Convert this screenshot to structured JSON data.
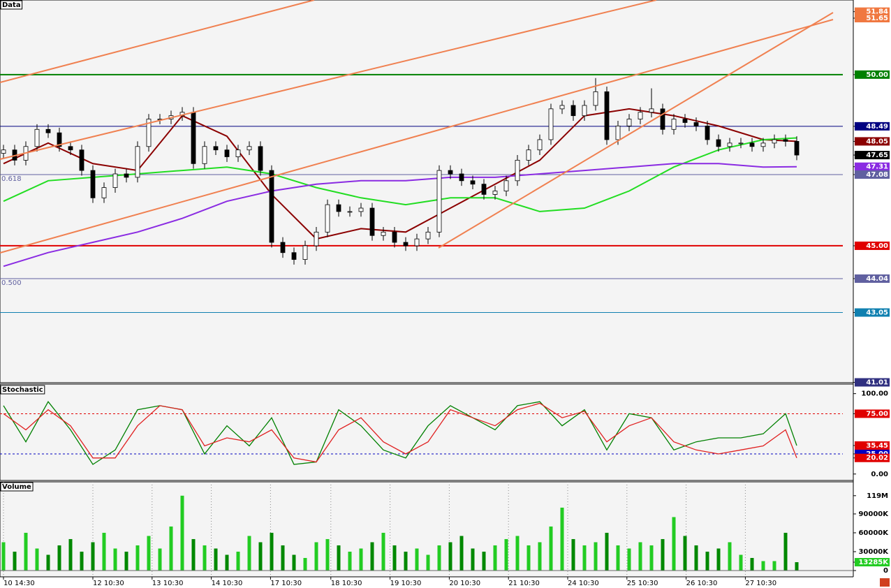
{
  "chart_data": [
    {
      "type": "candlestick",
      "title": "Data",
      "open": [
        47.7,
        47.8,
        47.5,
        47.9,
        48.4,
        48.3,
        47.9,
        47.8,
        47.2,
        46.4,
        46.7,
        47.1,
        47.0,
        47.9,
        48.7,
        48.7,
        48.8,
        48.9,
        47.4,
        47.9,
        47.8,
        47.6,
        47.8,
        47.9,
        47.2,
        45.1,
        44.8,
        44.6,
        45.0,
        45.4,
        46.2,
        46.0,
        46.0,
        46.1,
        45.3,
        45.4,
        45.1,
        45.0,
        45.2,
        45.4,
        47.2,
        47.1,
        46.9,
        46.8,
        46.5,
        46.6,
        46.9,
        47.5,
        47.8,
        48.1,
        49.0,
        49.1,
        48.8,
        49.1,
        49.5,
        48.1,
        48.5,
        48.7,
        48.9,
        49.0,
        48.4,
        48.7,
        48.6,
        48.5,
        48.1,
        47.9,
        48.0,
        48.0,
        47.9,
        48.0,
        48.1,
        48.05
      ],
      "high": [
        47.95,
        47.95,
        48.05,
        48.55,
        48.55,
        48.45,
        48.05,
        47.95,
        47.35,
        46.85,
        47.25,
        47.25,
        48.05,
        48.85,
        48.85,
        48.95,
        49.05,
        49.05,
        48.05,
        48.05,
        47.95,
        47.95,
        48.05,
        48.05,
        47.35,
        45.25,
        44.95,
        45.15,
        45.55,
        46.35,
        46.35,
        46.15,
        46.25,
        46.25,
        45.55,
        45.55,
        45.25,
        45.35,
        45.55,
        47.35,
        47.35,
        47.25,
        47.05,
        46.95,
        46.75,
        47.05,
        47.65,
        47.95,
        48.25,
        49.15,
        49.25,
        49.25,
        49.25,
        49.9,
        49.65,
        48.65,
        48.85,
        49.05,
        49.6,
        49.15,
        48.85,
        48.85,
        48.75,
        48.65,
        48.25,
        48.15,
        48.15,
        48.15,
        48.15,
        48.25,
        48.25,
        48.2
      ],
      "low": [
        47.55,
        47.35,
        47.35,
        47.75,
        48.15,
        47.75,
        47.65,
        47.05,
        46.25,
        46.25,
        46.55,
        46.85,
        46.85,
        47.75,
        48.55,
        48.55,
        48.65,
        47.25,
        47.25,
        47.65,
        47.45,
        47.45,
        47.65,
        47.05,
        44.95,
        44.65,
        44.45,
        44.45,
        44.85,
        45.25,
        45.85,
        45.85,
        45.85,
        45.15,
        45.15,
        44.95,
        44.85,
        44.85,
        45.05,
        45.25,
        46.95,
        46.75,
        46.65,
        46.35,
        46.35,
        46.45,
        46.75,
        47.35,
        47.65,
        47.95,
        48.85,
        48.65,
        48.65,
        48.95,
        47.95,
        47.95,
        48.35,
        48.55,
        48.75,
        48.25,
        48.25,
        48.45,
        48.35,
        47.95,
        47.75,
        47.75,
        47.85,
        47.75,
        47.75,
        47.85,
        47.9,
        47.5
      ],
      "close": [
        47.8,
        47.5,
        47.9,
        48.4,
        48.3,
        47.9,
        47.8,
        47.2,
        46.4,
        46.7,
        47.1,
        47.0,
        47.9,
        48.7,
        48.7,
        48.8,
        48.9,
        47.4,
        47.9,
        47.8,
        47.6,
        47.8,
        47.9,
        47.2,
        45.1,
        44.8,
        44.6,
        45.0,
        45.4,
        46.2,
        46.0,
        46.0,
        46.1,
        45.3,
        45.4,
        45.1,
        45.0,
        45.2,
        45.4,
        47.2,
        47.1,
        46.9,
        46.8,
        46.5,
        46.6,
        46.9,
        47.5,
        47.8,
        48.1,
        49.0,
        49.1,
        48.8,
        49.1,
        49.5,
        48.1,
        48.5,
        48.7,
        48.9,
        49.0,
        48.4,
        48.7,
        48.6,
        48.5,
        48.1,
        47.9,
        48.0,
        48.0,
        47.9,
        48.0,
        48.1,
        48.05,
        47.65
      ],
      "series": [
        {
          "color": "#8b0000",
          "x": [
            0,
            4,
            8,
            12,
            16,
            20,
            24,
            28,
            32,
            36,
            40,
            44,
            48,
            52,
            56,
            60,
            64,
            68,
            71
          ],
          "values": [
            47.4,
            48.0,
            47.4,
            47.2,
            48.8,
            48.2,
            46.5,
            45.2,
            45.5,
            45.4,
            46.1,
            46.8,
            47.5,
            48.8,
            49.0,
            48.8,
            48.5,
            48.1,
            48.05
          ]
        },
        {
          "color": "#22dd22",
          "x": [
            0,
            4,
            8,
            12,
            16,
            20,
            24,
            28,
            32,
            36,
            40,
            44,
            48,
            52,
            56,
            60,
            64,
            68,
            71
          ],
          "values": [
            46.3,
            46.9,
            47.0,
            47.1,
            47.2,
            47.3,
            47.1,
            46.7,
            46.4,
            46.2,
            46.4,
            46.4,
            46.0,
            46.1,
            46.6,
            47.3,
            47.8,
            48.1,
            48.15
          ]
        },
        {
          "color": "#8a2be2",
          "x": [
            0,
            4,
            8,
            12,
            16,
            20,
            24,
            28,
            32,
            36,
            40,
            44,
            48,
            52,
            56,
            60,
            64,
            68,
            71
          ],
          "values": [
            44.4,
            44.8,
            45.1,
            45.4,
            45.8,
            46.3,
            46.6,
            46.8,
            46.9,
            46.9,
            47.0,
            47.0,
            47.1,
            47.2,
            47.3,
            47.4,
            47.4,
            47.3,
            47.31
          ]
        }
      ],
      "ylim": [
        41.0,
        52.18
      ],
      "yticks": [
        51.84,
        51.65,
        {
          "value": 50,
          "label": "50.00"
        },
        48.49,
        48.05,
        47.65,
        47.31,
        47.08,
        {
          "value": 45,
          "label": "45.00"
        },
        44.04,
        43.05,
        41.01
      ],
      "ytick_colors": [
        "#f07840",
        "#f07840",
        "#008000",
        "#000080",
        "#8b0000",
        "#000000",
        "#8a2be2",
        "#6060a0",
        "#e00000",
        "#6060a0",
        "#1080b0",
        "#303080"
      ],
      "ytick_lines": [
        null,
        null,
        "#008000",
        "#000080",
        null,
        null,
        null,
        "#6060a0",
        "#e00000",
        "#6060a0",
        "#1080b0",
        null
      ],
      "annotations": [
        "0.618",
        "0.500"
      ]
    },
    {
      "type": "line",
      "title": "Stochastic",
      "series": [
        {
          "color": "#008000",
          "x": [
            0,
            2,
            4,
            6,
            8,
            10,
            12,
            14,
            16,
            18,
            20,
            22,
            24,
            26,
            28,
            30,
            32,
            34,
            36,
            38,
            40,
            42,
            44,
            46,
            48,
            50,
            52,
            54,
            56,
            58,
            60,
            62,
            64,
            66,
            68,
            70,
            71
          ],
          "values": [
            85,
            40,
            90,
            55,
            12,
            30,
            80,
            85,
            80,
            25,
            60,
            35,
            70,
            12,
            15,
            80,
            60,
            30,
            20,
            60,
            85,
            70,
            55,
            85,
            90,
            60,
            80,
            30,
            75,
            70,
            30,
            40,
            45,
            45,
            50,
            75,
            35.45
          ]
        },
        {
          "color": "#e02020",
          "x": [
            0,
            2,
            4,
            6,
            8,
            10,
            12,
            14,
            16,
            18,
            20,
            22,
            24,
            26,
            28,
            30,
            32,
            34,
            36,
            38,
            40,
            42,
            44,
            46,
            48,
            50,
            52,
            54,
            56,
            58,
            60,
            62,
            64,
            66,
            68,
            70,
            71
          ],
          "values": [
            75,
            55,
            80,
            60,
            20,
            20,
            60,
            85,
            80,
            35,
            45,
            40,
            55,
            20,
            15,
            55,
            70,
            40,
            25,
            40,
            80,
            70,
            60,
            80,
            88,
            70,
            78,
            40,
            60,
            70,
            40,
            30,
            25,
            30,
            35,
            55,
            20.02
          ]
        }
      ],
      "ylim": [
        -8,
        111
      ],
      "yticks": [
        {
          "value": 100,
          "label": "100.00"
        },
        {
          "value": 75,
          "label": "75.00"
        },
        35.45,
        {
          "value": 25,
          "label": "25.00"
        },
        20.02,
        {
          "value": 0,
          "label": "0.00"
        }
      ],
      "ytick_colors": [
        null,
        "#e00000",
        "#e00000",
        "#0000c0",
        "#e00000",
        null
      ],
      "ytick_lines": [
        null,
        "#e00000",
        null,
        "#0000c0",
        null,
        null
      ]
    },
    {
      "type": "bar",
      "title": "Volume",
      "values": [
        45000,
        30000,
        60000,
        35000,
        25000,
        40000,
        50000,
        30000,
        45000,
        60000,
        35000,
        30000,
        40000,
        55000,
        35000,
        70000,
        119000,
        50000,
        40000,
        35000,
        25000,
        30000,
        55000,
        45000,
        60000,
        40000,
        25000,
        20000,
        45000,
        50000,
        40000,
        30000,
        35000,
        45000,
        60000,
        40000,
        30000,
        35000,
        25000,
        40000,
        45000,
        55000,
        35000,
        30000,
        40000,
        50000,
        55000,
        40000,
        45000,
        70000,
        100000,
        50000,
        40000,
        45000,
        60000,
        40000,
        35000,
        45000,
        40000,
        50000,
        85000,
        55000,
        40000,
        30000,
        35000,
        45000,
        25000,
        20000,
        15000,
        15000,
        60000,
        13285
      ],
      "up_color": "#22cc22",
      "down_color": "#008800",
      "ylim": [
        -10000,
        141000
      ],
      "yticks": [
        {
          "value": 119000,
          "label": "119M"
        },
        {
          "value": 90000,
          "label": "90000K"
        },
        {
          "value": 60000,
          "label": "60000K"
        },
        {
          "value": 30000,
          "label": "30000K"
        },
        {
          "value": 13285,
          "label": "13285K"
        },
        0
      ],
      "ytick_colors": [
        null,
        null,
        null,
        null,
        "#22cc22",
        null
      ],
      "xticks": [
        {
          "value": 0,
          "label": "10 14:30"
        },
        {
          "value": 8,
          "label": "12 10:30"
        },
        {
          "value": 13.3,
          "label": "13 10:30"
        },
        {
          "value": 18.6,
          "label": "14 10:30"
        },
        {
          "value": 23.9,
          "label": "17 10:30"
        },
        {
          "value": 29.3,
          "label": "18 10:30"
        },
        {
          "value": 34.6,
          "label": "19 10:30"
        },
        {
          "value": 39.9,
          "label": "20 10:30"
        },
        {
          "value": 45.2,
          "label": "21 10:30"
        },
        {
          "value": 50.5,
          "label": "24 10:30"
        },
        {
          "value": 55.8,
          "label": "25 10:30"
        },
        {
          "value": 61.1,
          "label": "26 10:30"
        },
        {
          "value": 66.4,
          "label": "27 10:30"
        }
      ]
    }
  ]
}
